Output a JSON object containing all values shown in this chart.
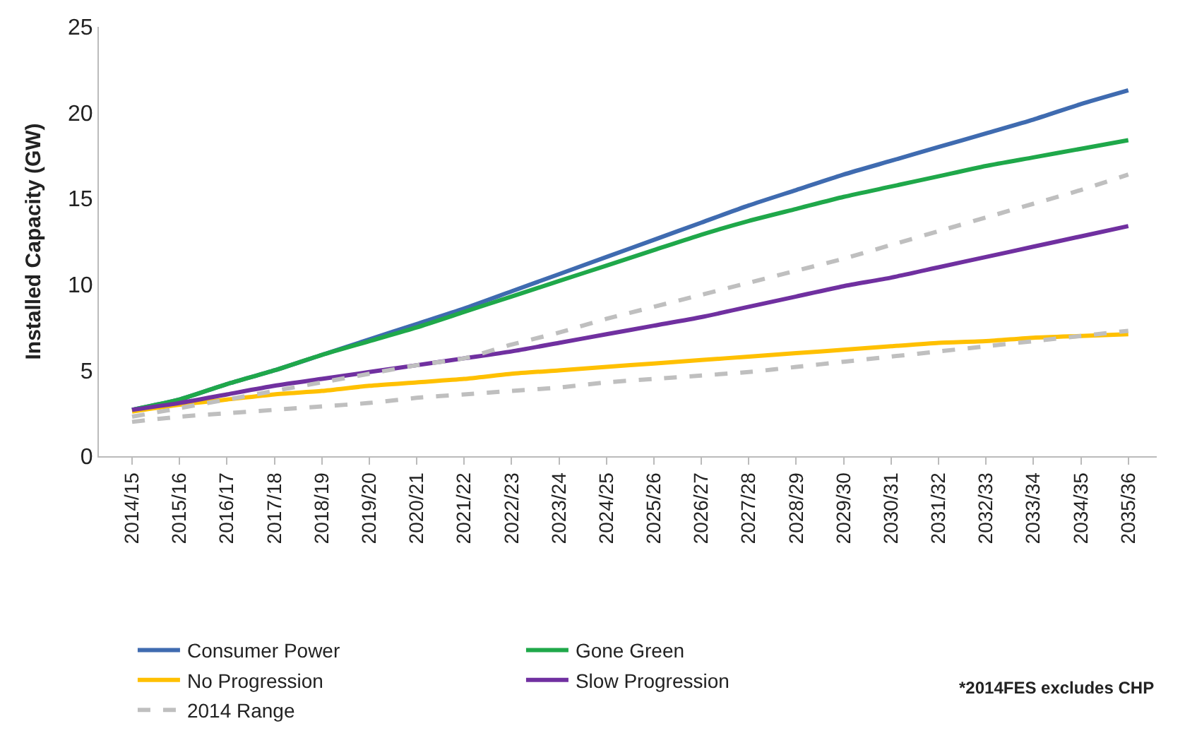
{
  "chart_data": {
    "type": "line",
    "ylabel": "Installed Capacity (GW)",
    "categories": [
      "2014/15",
      "2015/16",
      "2016/17",
      "2017/18",
      "2018/19",
      "2019/20",
      "2020/21",
      "2021/22",
      "2022/23",
      "2023/24",
      "2024/25",
      "2025/26",
      "2026/27",
      "2027/28",
      "2028/29",
      "2029/30",
      "2030/31",
      "2031/32",
      "2032/33",
      "2033/34",
      "2034/35",
      "2035/36"
    ],
    "series": [
      {
        "name": "Consumer Power",
        "color": "#3f6bb0",
        "values": [
          2.7,
          3.3,
          4.2,
          5.0,
          5.9,
          6.8,
          7.7,
          8.6,
          9.6,
          10.6,
          11.6,
          12.6,
          13.6,
          14.6,
          15.5,
          16.4,
          17.2,
          18.0,
          18.8,
          19.6,
          20.5,
          21.3
        ]
      },
      {
        "name": "Gone Green",
        "color": "#1fa84a",
        "values": [
          2.7,
          3.3,
          4.2,
          5.0,
          5.9,
          6.7,
          7.5,
          8.4,
          9.3,
          10.2,
          11.1,
          12.0,
          12.9,
          13.7,
          14.4,
          15.1,
          15.7,
          16.3,
          16.9,
          17.4,
          17.9,
          18.4
        ]
      },
      {
        "name": "No Progression",
        "color": "#ffc000",
        "values": [
          2.6,
          3.0,
          3.3,
          3.6,
          3.8,
          4.1,
          4.3,
          4.5,
          4.8,
          5.0,
          5.2,
          5.4,
          5.6,
          5.8,
          6.0,
          6.2,
          6.4,
          6.6,
          6.7,
          6.9,
          7.0,
          7.1
        ]
      },
      {
        "name": "Slow Progression",
        "color": "#7030a0",
        "values": [
          2.7,
          3.1,
          3.6,
          4.1,
          4.5,
          4.9,
          5.3,
          5.7,
          6.1,
          6.6,
          7.1,
          7.6,
          8.1,
          8.7,
          9.3,
          9.9,
          10.4,
          11.0,
          11.6,
          12.2,
          12.8,
          13.4
        ]
      },
      {
        "name": "2014 Range",
        "color": "#bfbfbf",
        "line_style": "dashed",
        "values": [
          2.3,
          2.8,
          3.3,
          3.8,
          4.3,
          4.8,
          5.3,
          5.7,
          6.5,
          7.2,
          8.0,
          8.7,
          9.4,
          10.1,
          10.8,
          11.5,
          12.3,
          13.1,
          13.9,
          14.7,
          15.5,
          16.4
        ]
      },
      {
        "color": "#bfbfbf",
        "line_style": "dashed",
        "values": [
          2.0,
          2.3,
          2.5,
          2.7,
          2.9,
          3.1,
          3.4,
          3.6,
          3.8,
          4.0,
          4.3,
          4.5,
          4.7,
          4.9,
          5.2,
          5.5,
          5.8,
          6.1,
          6.4,
          6.7,
          7.0,
          7.3
        ]
      }
    ],
    "ylim": [
      0,
      25
    ],
    "yticks": [
      0,
      5,
      10,
      15,
      20,
      25
    ],
    "legend": "bottom",
    "marker": "none",
    "annotations": [
      "*2014FES excludes CHP"
    ]
  }
}
